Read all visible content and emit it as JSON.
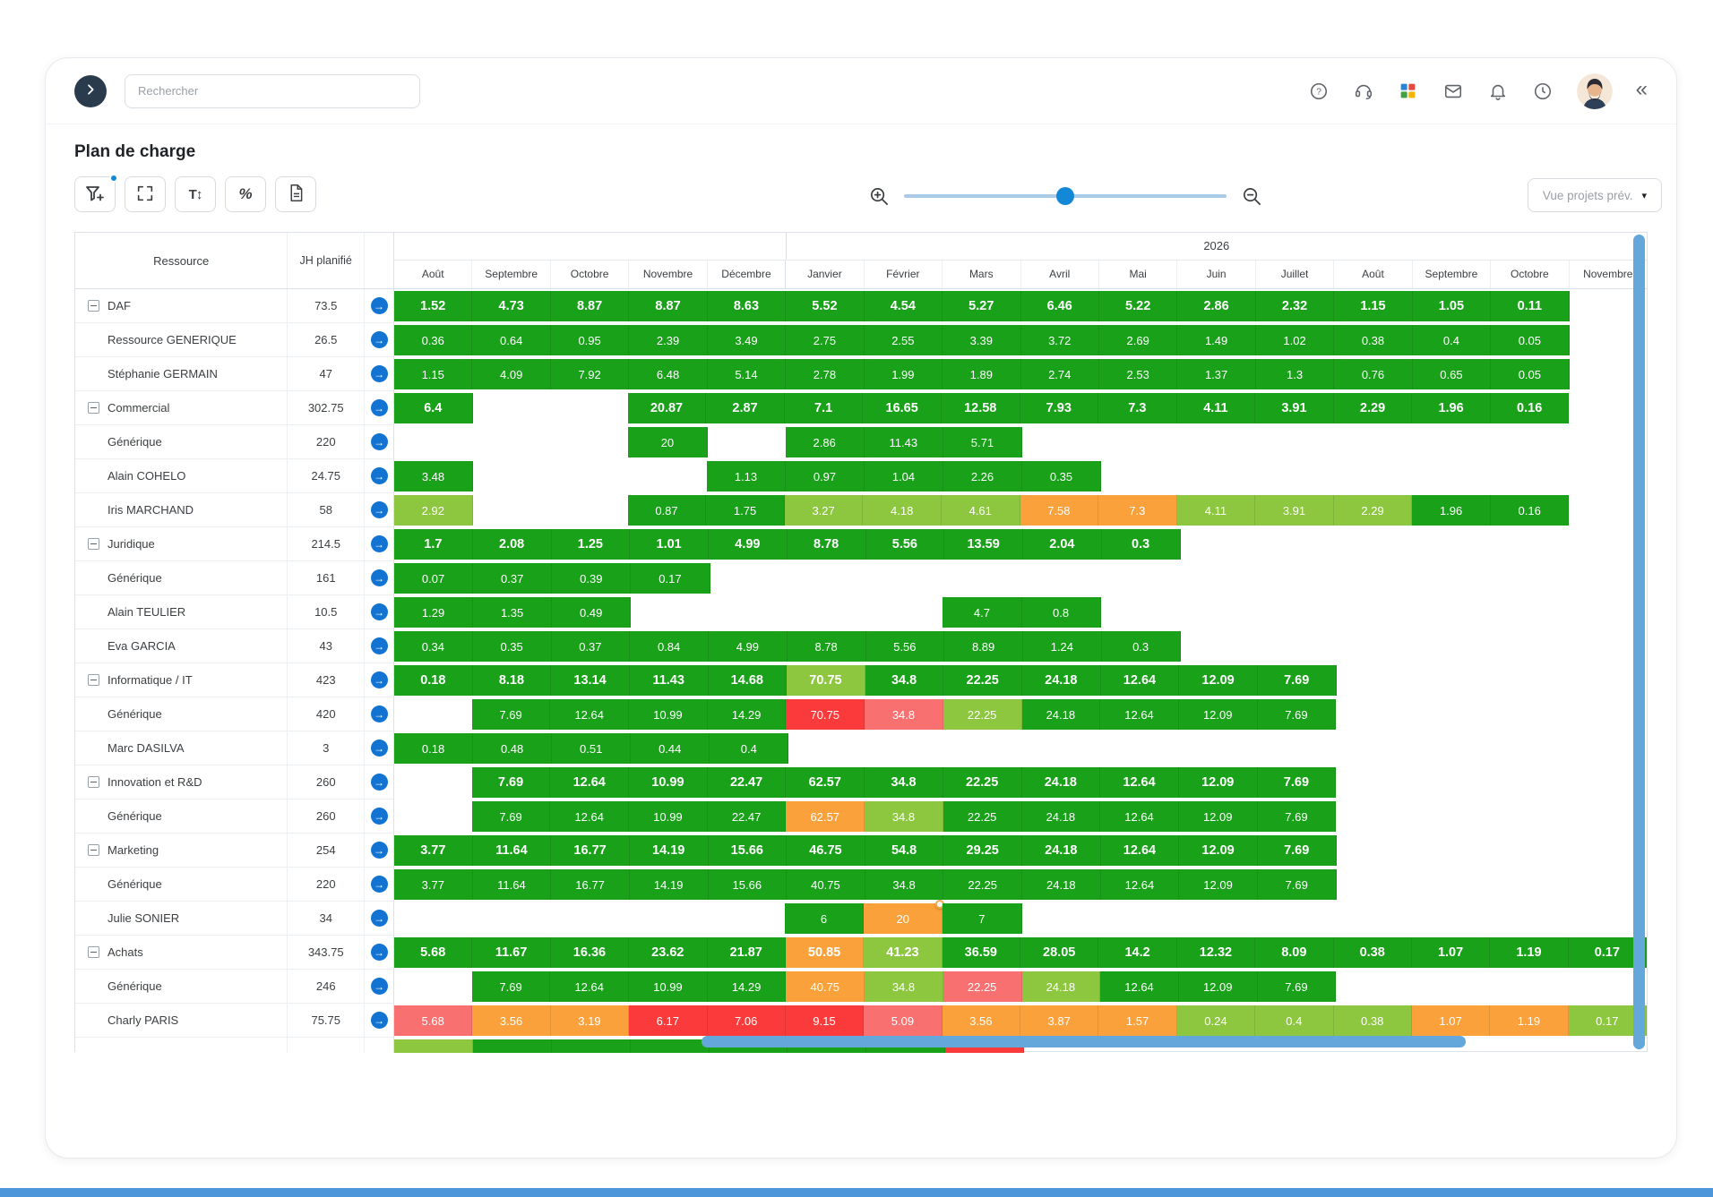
{
  "topbar": {
    "search_placeholder": "Rechercher",
    "collapse_glyph": "«"
  },
  "page_title": "Plan de charge",
  "toolbar": {
    "text_size_glyph": "T↕",
    "percent_glyph": "%",
    "view_dropdown_label": "Vue projets prév."
  },
  "colors": {
    "g": "#1aa11a",
    "lg": "#8dc63f",
    "o": "#fba13c",
    "r": "#fb3b3b",
    "s": "#f97070",
    "accent_blue": "#1589d8",
    "scrollbar_blue": "#64a7da"
  },
  "table": {
    "resource_header": "Ressource",
    "jh_header": "JH planifié",
    "year_label": "2026",
    "year_start_index": 5,
    "months": [
      "Août",
      "Septembre",
      "Octobre",
      "Novembre",
      "Décembre",
      "Janvier",
      "Février",
      "Mars",
      "Avril",
      "Mai",
      "Juin",
      "Juillet",
      "Août",
      "Septembre",
      "Octobre",
      "Novembre"
    ],
    "rows": [
      {
        "group": true,
        "name": "DAF",
        "jh": "73.5",
        "cells": [
          "1.52|g",
          "4.73|g",
          "8.87|g",
          "8.87|g",
          "8.63|g",
          "5.52|g",
          "4.54|g",
          "5.27|g",
          "6.46|g",
          "5.22|g",
          "2.86|g",
          "2.32|g",
          "1.15|g",
          "1.05|g",
          "0.11|g",
          ""
        ]
      },
      {
        "name": "Ressource GENERIQUE",
        "jh": "26.5",
        "cells": [
          "0.36|g",
          "0.64|g",
          "0.95|g",
          "2.39|g",
          "3.49|g",
          "2.75|g",
          "2.55|g",
          "3.39|g",
          "3.72|g",
          "2.69|g",
          "1.49|g",
          "1.02|g",
          "0.38|g",
          "0.4|g",
          "0.05|g",
          ""
        ]
      },
      {
        "name": "Stéphanie GERMAIN",
        "jh": "47",
        "cells": [
          "1.15|g",
          "4.09|g",
          "7.92|g",
          "6.48|g",
          "5.14|g",
          "2.78|g",
          "1.99|g",
          "1.89|g",
          "2.74|g",
          "2.53|g",
          "1.37|g",
          "1.3|g",
          "0.76|g",
          "0.65|g",
          "0.05|g",
          ""
        ]
      },
      {
        "group": true,
        "name": "Commercial",
        "jh": "302.75",
        "cells": [
          "6.4|g",
          "",
          "",
          "20.87|g",
          "2.87|g",
          "7.1|g",
          "16.65|g",
          "12.58|g",
          "7.93|g",
          "7.3|g",
          "4.11|g",
          "3.91|g",
          "2.29|g",
          "1.96|g",
          "0.16|g",
          ""
        ]
      },
      {
        "name": "Générique",
        "jh": "220",
        "cells": [
          "",
          "",
          "",
          "20|g",
          "",
          "2.86|g",
          "11.43|g",
          "5.71|g",
          "",
          "",
          "",
          "",
          "",
          "",
          "",
          ""
        ]
      },
      {
        "name": "Alain COHELO",
        "jh": "24.75",
        "cells": [
          "3.48|g",
          "",
          "",
          "",
          "1.13|g",
          "0.97|g",
          "1.04|g",
          "2.26|g",
          "0.35|g",
          "",
          "",
          "",
          "",
          "",
          "",
          ""
        ]
      },
      {
        "name": "Iris MARCHAND",
        "jh": "58",
        "cells": [
          "2.92|lg",
          "",
          "",
          "0.87|g",
          "1.75|g",
          "3.27|lg",
          "4.18|lg",
          "4.61|lg",
          "7.58|o",
          "7.3|o",
          "4.11|lg",
          "3.91|lg",
          "2.29|lg",
          "1.96|g",
          "0.16|g",
          ""
        ]
      },
      {
        "group": true,
        "name": "Juridique",
        "jh": "214.5",
        "cells": [
          "1.7|g",
          "2.08|g",
          "1.25|g",
          "1.01|g",
          "4.99|g",
          "8.78|g",
          "5.56|g",
          "13.59|g",
          "2.04|g",
          "0.3|g",
          "",
          "",
          "",
          "",
          "",
          ""
        ]
      },
      {
        "name": "Générique",
        "jh": "161",
        "cells": [
          "0.07|g",
          "0.37|g",
          "0.39|g",
          "0.17|g",
          "",
          "",
          "",
          "",
          "",
          "",
          "",
          "",
          "",
          "",
          "",
          ""
        ]
      },
      {
        "name": "Alain TEULIER",
        "jh": "10.5",
        "cells": [
          "1.29|g",
          "1.35|g",
          "0.49|g",
          "",
          "",
          "",
          "",
          "4.7|g",
          "0.8|g",
          "",
          "",
          "",
          "",
          "",
          "",
          ""
        ]
      },
      {
        "name": "Eva GARCIA",
        "jh": "43",
        "cells": [
          "0.34|g",
          "0.35|g",
          "0.37|g",
          "0.84|g",
          "4.99|g",
          "8.78|g",
          "5.56|g",
          "8.89|g",
          "1.24|g",
          "0.3|g",
          "",
          "",
          "",
          "",
          "",
          ""
        ]
      },
      {
        "group": true,
        "name": "Informatique / IT",
        "jh": "423",
        "cells": [
          "0.18|g",
          "8.18|g",
          "13.14|g",
          "11.43|g",
          "14.68|g",
          "70.75|lg",
          "34.8|g",
          "22.25|g",
          "24.18|g",
          "12.64|g",
          "12.09|g",
          "7.69|g",
          "",
          "",
          "",
          ""
        ]
      },
      {
        "name": "Générique",
        "jh": "420",
        "cells": [
          "",
          "7.69|g",
          "12.64|g",
          "10.99|g",
          "14.29|g",
          "70.75|r",
          "34.8|s",
          "22.25|lg",
          "24.18|g",
          "12.64|g",
          "12.09|g",
          "7.69|g",
          "",
          "",
          "",
          ""
        ]
      },
      {
        "name": "Marc DASILVA",
        "jh": "3",
        "cells": [
          "0.18|g",
          "0.48|g",
          "0.51|g",
          "0.44|g",
          "0.4|g",
          "",
          "",
          "",
          "",
          "",
          "",
          "",
          "",
          "",
          "",
          ""
        ]
      },
      {
        "group": true,
        "name": "Innovation et R&D",
        "jh": "260",
        "cells": [
          "",
          "7.69|g",
          "12.64|g",
          "10.99|g",
          "22.47|g",
          "62.57|g",
          "34.8|g",
          "22.25|g",
          "24.18|g",
          "12.64|g",
          "12.09|g",
          "7.69|g",
          "",
          "",
          "",
          ""
        ]
      },
      {
        "name": "Générique",
        "jh": "260",
        "cells": [
          "",
          "7.69|g",
          "12.64|g",
          "10.99|g",
          "22.47|g",
          "62.57|o",
          "34.8|lg",
          "22.25|g",
          "24.18|g",
          "12.64|g",
          "12.09|g",
          "7.69|g",
          "",
          "",
          "",
          ""
        ]
      },
      {
        "group": true,
        "name": "Marketing",
        "jh": "254",
        "cells": [
          "3.77|g",
          "11.64|g",
          "16.77|g",
          "14.19|g",
          "15.66|g",
          "46.75|g",
          "54.8|g",
          "29.25|g",
          "24.18|g",
          "12.64|g",
          "12.09|g",
          "7.69|g",
          "",
          "",
          "",
          ""
        ]
      },
      {
        "name": "Générique",
        "jh": "220",
        "cells": [
          "3.77|g",
          "11.64|g",
          "16.77|g",
          "14.19|g",
          "15.66|g",
          "40.75|g",
          "34.8|g",
          "22.25|g",
          "24.18|g",
          "12.64|g",
          "12.09|g",
          "7.69|g",
          "",
          "",
          "",
          ""
        ]
      },
      {
        "name": "Julie SONIER",
        "jh": "34",
        "cells": [
          "",
          "",
          "",
          "",
          "",
          "6|g",
          "20|o|badge",
          "7|g",
          "",
          "",
          "",
          "",
          "",
          "",
          "",
          ""
        ]
      },
      {
        "group": true,
        "name": "Achats",
        "jh": "343.75",
        "cells": [
          "5.68|g",
          "11.67|g",
          "16.36|g",
          "23.62|g",
          "21.87|g",
          "50.85|o",
          "41.23|lg",
          "36.59|g",
          "28.05|g",
          "14.2|g",
          "12.32|g",
          "8.09|g",
          "0.38|g",
          "1.07|g",
          "1.19|g",
          "0.17|g"
        ]
      },
      {
        "name": "Générique",
        "jh": "246",
        "cells": [
          "",
          "7.69|g",
          "12.64|g",
          "10.99|g",
          "14.29|g",
          "40.75|o",
          "34.8|lg",
          "22.25|s",
          "24.18|lg",
          "12.64|g",
          "12.09|g",
          "7.69|g",
          "",
          "",
          "",
          ""
        ]
      },
      {
        "name": "Charly PARIS",
        "jh": "75.75",
        "cells": [
          "5.68|s",
          "3.56|o",
          "3.19|o",
          "6.17|r",
          "7.06|r",
          "9.15|r",
          "5.09|s",
          "3.56|o",
          "3.87|o",
          "1.57|o",
          "0.24|lg",
          "0.4|lg",
          "0.38|lg",
          "1.07|o",
          "1.19|o",
          "0.17|lg"
        ]
      },
      {
        "partial": true,
        "name": "",
        "jh": "",
        "cells": [
          "|lg",
          "|g",
          "|g",
          "|g",
          "|g",
          "|g",
          "|g",
          "|r",
          "",
          "",
          "",
          "",
          "",
          "",
          "",
          ""
        ]
      }
    ]
  }
}
